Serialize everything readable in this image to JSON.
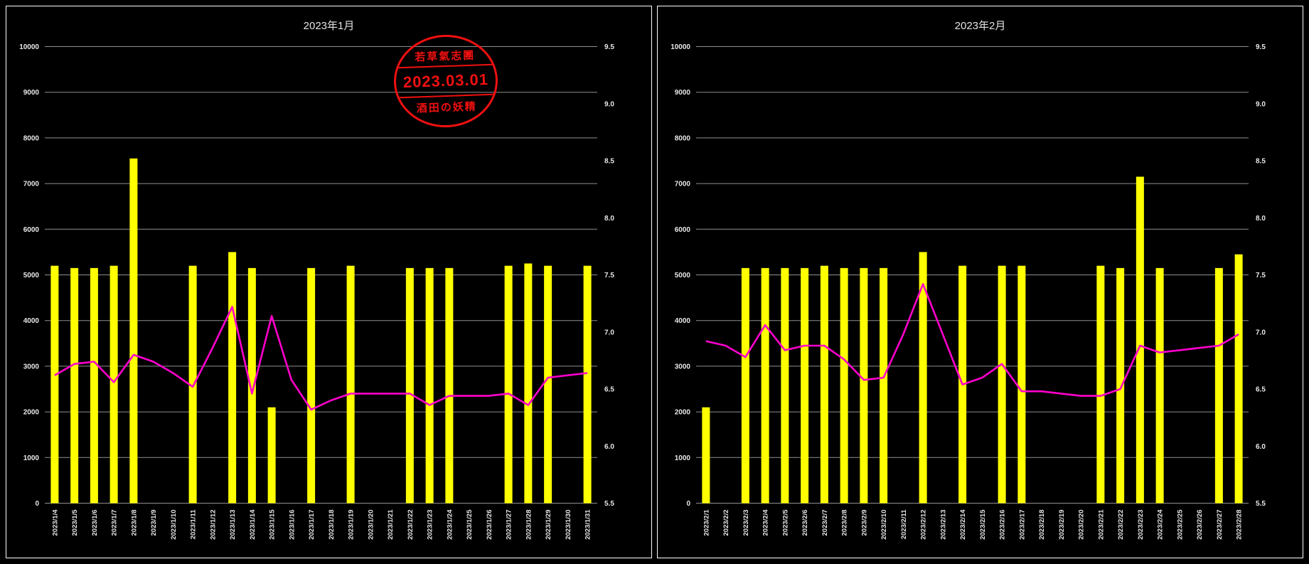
{
  "colors": {
    "background": "#000000",
    "panel_border": "#ffffff",
    "grid": "#909090",
    "axis_text": "#e8e8e8",
    "bar": "#ffff00",
    "line": "#ff00cc",
    "stamp": "#f01010"
  },
  "stamp": {
    "line1": "若草氣志團",
    "line2": "2023.03.01",
    "line3": "酒田の妖精",
    "color": "#f01010"
  },
  "chart_data": [
    {
      "type": "bar",
      "title": "2023年1月",
      "grid": true,
      "legend": "none",
      "background": "#000000",
      "left_axis": {
        "min": 0,
        "max": 10000,
        "step": 1000,
        "ticks": [
          "0",
          "1000",
          "2000",
          "3000",
          "4000",
          "5000",
          "6000",
          "7000",
          "8000",
          "9000",
          "10000"
        ]
      },
      "right_axis": {
        "min": 5.5,
        "max": 9.5,
        "step": 0.5,
        "ticks": [
          "5.5",
          "6.0",
          "6.5",
          "7.0",
          "7.5",
          "8.0",
          "8.5",
          "9.0",
          "9.5"
        ]
      },
      "categories": [
        "2023/1/4",
        "2023/1/5",
        "2023/1/6",
        "2023/1/7",
        "2023/1/8",
        "2023/1/9",
        "2023/1/10",
        "2023/1/11",
        "2023/1/12",
        "2023/1/13",
        "2023/1/14",
        "2023/1/15",
        "2023/1/16",
        "2023/1/17",
        "2023/1/18",
        "2023/1/19",
        "2023/1/20",
        "2023/1/21",
        "2023/1/22",
        "2023/1/23",
        "2023/1/24",
        "2023/1/25",
        "2023/1/26",
        "2023/1/27",
        "2023/1/28",
        "2023/1/29",
        "2023/1/30",
        "2023/1/31"
      ],
      "series": [
        {
          "name": "daily-bar",
          "type": "bar",
          "axis": "left",
          "color": "#ffff00",
          "values": [
            5200,
            5150,
            5150,
            5200,
            7550,
            0,
            0,
            5200,
            0,
            5500,
            5150,
            2100,
            0,
            5150,
            0,
            5200,
            0,
            0,
            5150,
            5150,
            5150,
            0,
            0,
            5200,
            5250,
            5200,
            0,
            5200
          ]
        },
        {
          "name": "daily-line",
          "type": "line",
          "axis": "right",
          "color": "#ff00cc",
          "values": [
            6.62,
            6.72,
            6.74,
            6.56,
            6.8,
            6.74,
            6.64,
            6.52,
            6.86,
            7.22,
            6.46,
            7.14,
            6.58,
            6.32,
            6.4,
            6.46,
            6.46,
            6.46,
            6.46,
            6.36,
            6.44,
            6.44,
            6.44,
            6.46,
            6.36,
            6.6,
            6.62,
            6.64
          ]
        }
      ]
    },
    {
      "type": "bar",
      "title": "2023年2月",
      "grid": true,
      "legend": "none",
      "background": "#000000",
      "left_axis": {
        "min": 0,
        "max": 10000,
        "step": 1000,
        "ticks": [
          "0",
          "1000",
          "2000",
          "3000",
          "4000",
          "5000",
          "6000",
          "7000",
          "8000",
          "9000",
          "10000"
        ]
      },
      "right_axis": {
        "min": 5.5,
        "max": 9.5,
        "step": 0.5,
        "ticks": [
          "5.5",
          "6.0",
          "6.5",
          "7.0",
          "7.5",
          "8.0",
          "8.5",
          "9.0",
          "9.5"
        ]
      },
      "categories": [
        "2023/2/1",
        "2023/2/2",
        "2023/2/3",
        "2023/2/4",
        "2023/2/5",
        "2023/2/6",
        "2023/2/7",
        "2023/2/8",
        "2023/2/9",
        "2023/2/10",
        "2023/2/11",
        "2023/2/12",
        "2023/2/13",
        "2023/2/14",
        "2023/2/15",
        "2023/2/16",
        "2023/2/17",
        "2023/2/18",
        "2023/2/19",
        "2023/2/20",
        "2023/2/21",
        "2023/2/22",
        "2023/2/23",
        "2023/2/24",
        "2023/2/25",
        "2023/2/26",
        "2023/2/27",
        "2023/2/28"
      ],
      "series": [
        {
          "name": "daily-bar",
          "type": "bar",
          "axis": "left",
          "color": "#ffff00",
          "values": [
            2100,
            0,
            5150,
            5150,
            5150,
            5150,
            5200,
            5150,
            5150,
            5150,
            0,
            5500,
            0,
            5200,
            0,
            5200,
            5200,
            0,
            0,
            0,
            5200,
            5150,
            7150,
            5150,
            0,
            0,
            5150,
            5450
          ]
        },
        {
          "name": "daily-line",
          "type": "line",
          "axis": "right",
          "color": "#ff00cc",
          "values": [
            6.92,
            6.88,
            6.78,
            7.06,
            6.84,
            6.88,
            6.88,
            6.76,
            6.58,
            6.6,
            6.98,
            7.42,
            6.98,
            6.54,
            6.6,
            6.72,
            6.48,
            6.48,
            6.46,
            6.44,
            6.44,
            6.5,
            6.88,
            6.82,
            6.84,
            6.86,
            6.88,
            6.98
          ]
        }
      ]
    }
  ]
}
